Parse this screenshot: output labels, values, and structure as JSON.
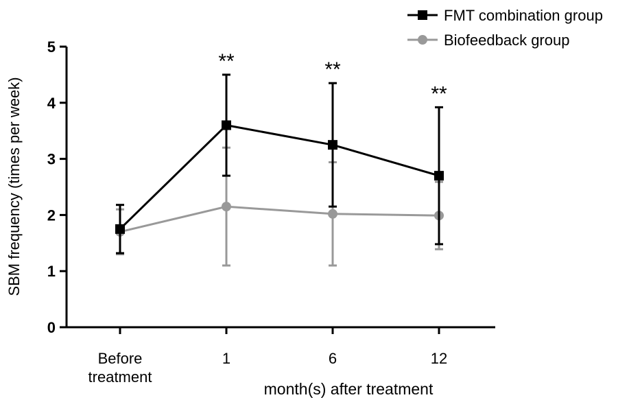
{
  "chart_data": {
    "type": "line",
    "categories": [
      "Before\ntreatment",
      "1",
      "6",
      "12"
    ],
    "xlabel": "month(s) after treatment",
    "ylabel": "SBM frequency (times per week)",
    "ylim": [
      0,
      5
    ],
    "yticks": [
      "0",
      "1",
      "2",
      "3",
      "4",
      "5"
    ],
    "grid": false,
    "legend_position": "top-right",
    "annotations": [
      "",
      "**",
      "**",
      "**"
    ],
    "series": [
      {
        "name": "FMT combination group",
        "color": "#000000",
        "marker": "square",
        "values": [
          1.75,
          3.6,
          3.25,
          2.7
        ],
        "error": [
          0.43,
          0.9,
          1.1,
          1.22
        ]
      },
      {
        "name": "Biofeedback group",
        "color": "#999999",
        "marker": "circle",
        "values": [
          1.7,
          2.15,
          2.02,
          1.99
        ],
        "error": [
          0.4,
          1.05,
          0.92,
          0.6
        ]
      }
    ]
  }
}
